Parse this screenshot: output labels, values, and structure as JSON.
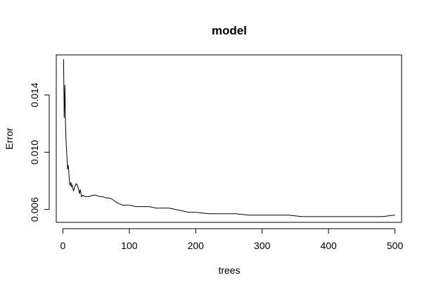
{
  "chart_data": {
    "type": "line",
    "title": "model",
    "xlabel": "trees",
    "ylabel": "Error",
    "xlim": [
      -10,
      510
    ],
    "ylim": [
      0.0051,
      0.0168
    ],
    "xticks": [
      0,
      100,
      200,
      300,
      400,
      500
    ],
    "xtick_labels": [
      "0",
      "100",
      "200",
      "300",
      "400",
      "500"
    ],
    "yticks": [
      0.006,
      0.01,
      0.014
    ],
    "ytick_labels": [
      "0.006",
      "0.010",
      "0.014"
    ],
    "grid": false,
    "series": [
      {
        "color": "#000000",
        "x": [
          1,
          2,
          3,
          4,
          5,
          6,
          7,
          8,
          9,
          10,
          11,
          12,
          13,
          14,
          16,
          18,
          20,
          22,
          24,
          25,
          26,
          27,
          28,
          30,
          33,
          36,
          40,
          45,
          50,
          55,
          60,
          65,
          70,
          75,
          80,
          85,
          90,
          95,
          100,
          110,
          120,
          130,
          140,
          150,
          160,
          170,
          180,
          190,
          200,
          220,
          240,
          260,
          280,
          300,
          320,
          340,
          360,
          380,
          400,
          420,
          440,
          460,
          480,
          500
        ],
        "y": [
          0.0165,
          0.0124,
          0.0147,
          0.0118,
          0.0105,
          0.0098,
          0.0088,
          0.0091,
          0.0086,
          0.0078,
          0.0077,
          0.0079,
          0.0076,
          0.0077,
          0.0073,
          0.0076,
          0.0078,
          0.0077,
          0.0073,
          0.0071,
          0.0074,
          0.0072,
          0.0069,
          0.007,
          0.0069,
          0.0069,
          0.0069,
          0.007,
          0.007,
          0.0069,
          0.0069,
          0.0068,
          0.0068,
          0.0067,
          0.0065,
          0.0064,
          0.0063,
          0.0063,
          0.0063,
          0.0062,
          0.0062,
          0.0062,
          0.0061,
          0.0061,
          0.0061,
          0.006,
          0.0059,
          0.0058,
          0.0058,
          0.0057,
          0.0057,
          0.0057,
          0.0056,
          0.0056,
          0.0056,
          0.0056,
          0.0055,
          0.0055,
          0.0055,
          0.0055,
          0.0055,
          0.0055,
          0.0055,
          0.0056
        ]
      }
    ]
  }
}
